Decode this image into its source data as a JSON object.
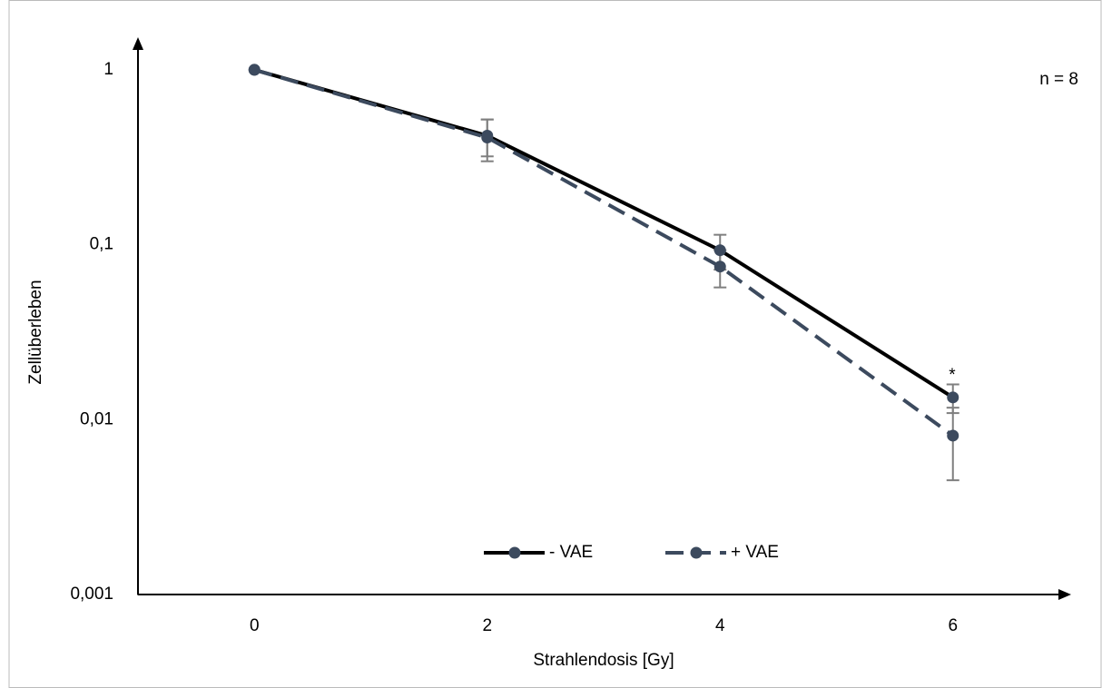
{
  "chart_data": {
    "type": "line",
    "x_label": "Strahlendosis [Gy]",
    "y_label": "Zellüberleben",
    "x": [
      0,
      2,
      4,
      6
    ],
    "xlim": [
      -1,
      7
    ],
    "xticks": [
      0,
      2,
      4,
      6
    ],
    "ylim": [
      0.001,
      1.5
    ],
    "log_y": true,
    "yticks": [
      {
        "value": 0.001,
        "label": "0,001"
      },
      {
        "value": 0.01,
        "label": "0,01"
      },
      {
        "value": 0.1,
        "label": "0,1"
      },
      1
    ],
    "error_color": "#7f7f7f",
    "series": [
      {
        "name": "- VAE",
        "color": "#000000",
        "marker_color": "#3c4a5e",
        "dashed": false,
        "values": [
          1,
          0.42,
          0.093,
          0.0134
        ],
        "errors": [
          0,
          0.1,
          0.021,
          0.0025
        ]
      },
      {
        "name": "+ VAE",
        "color": "#3c4a5e",
        "marker_color": "#3c4a5e",
        "dashed": true,
        "values": [
          1,
          0.41,
          0.075,
          0.0081
        ],
        "errors": [
          0,
          0.11,
          0.018,
          0.0036
        ]
      }
    ],
    "annotations": [
      "n = 8",
      "*"
    ]
  }
}
